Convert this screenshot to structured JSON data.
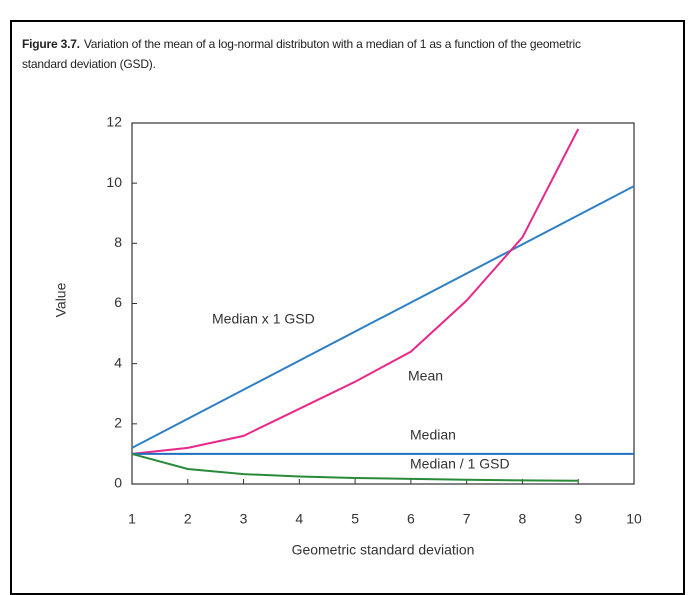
{
  "chart_data": {
    "type": "line",
    "figure_label": "Figure 3.7.",
    "title": "Variation of the mean of a log-normal distributon with a median of 1 as a function of the geometric standard deviation (GSD).",
    "xlabel": "Geometric standard deviation",
    "ylabel": "Value",
    "xlim": [
      1,
      10
    ],
    "xticks": [
      1,
      2,
      3,
      4,
      5,
      6,
      7,
      8,
      9,
      10
    ],
    "ylim": [
      0,
      12
    ],
    "yticks": [
      0,
      2,
      4,
      6,
      8,
      10,
      12
    ],
    "series": [
      {
        "name": "Median x 1 GSD",
        "color": "#2f7fc4",
        "x": [
          1,
          10
        ],
        "values": [
          1.2,
          9.9
        ]
      },
      {
        "name": "Mean",
        "color": "#e8298a",
        "x": [
          1,
          2,
          3,
          4,
          5,
          6,
          7,
          8,
          9
        ],
        "values": [
          1,
          1.2,
          1.6,
          2.5,
          3.4,
          4.4,
          6.1,
          8.2,
          11.8
        ]
      },
      {
        "name": "Median",
        "color": "#1f6fc0",
        "x": [
          1,
          10
        ],
        "values": [
          1,
          1
        ]
      },
      {
        "name": "Median / 1 GSD",
        "color": "#2a8a3a",
        "x": [
          1,
          2,
          3,
          4,
          5,
          6,
          7,
          8,
          9
        ],
        "values": [
          1,
          0.5,
          0.33,
          0.25,
          0.2,
          0.17,
          0.14,
          0.12,
          0.11
        ]
      }
    ]
  }
}
